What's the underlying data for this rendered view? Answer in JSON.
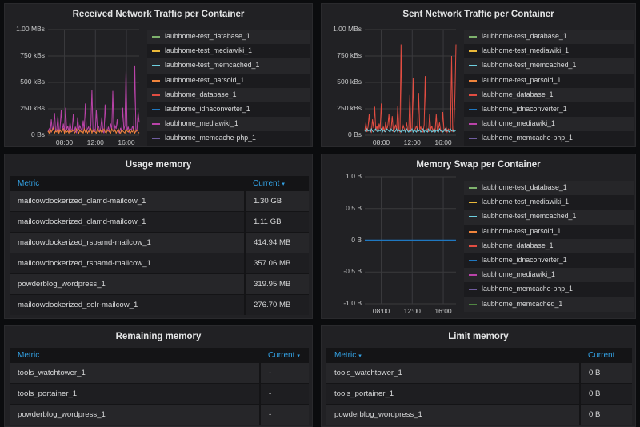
{
  "panels": {
    "received": {
      "title": "Received Network Traffic per Container",
      "y_ticks": [
        "1.00 MBs",
        "750 kBs",
        "500 kBs",
        "250 kBs",
        "0 Bs"
      ],
      "x_ticks": [
        "08:00",
        "12:00",
        "16:00"
      ],
      "legend": [
        {
          "name": "laubhome-test_database_1",
          "color": "#7eb26d"
        },
        {
          "name": "laubhome-test_mediawiki_1",
          "color": "#eab839"
        },
        {
          "name": "laubhome-test_memcached_1",
          "color": "#6ed0e0"
        },
        {
          "name": "laubhome-test_parsoid_1",
          "color": "#ef843c"
        },
        {
          "name": "laubhome_database_1",
          "color": "#e24d42"
        },
        {
          "name": "laubhome_idnaconverter_1",
          "color": "#1f78c1"
        },
        {
          "name": "laubhome_mediawiki_1",
          "color": "#ba43a9"
        },
        {
          "name": "laubhome_memcache-php_1",
          "color": "#705da0"
        }
      ]
    },
    "sent": {
      "title": "Sent Network Traffic per Container",
      "y_ticks": [
        "1.00 MBs",
        "750 kBs",
        "500 kBs",
        "250 kBs",
        "0 Bs"
      ],
      "x_ticks": [
        "08:00",
        "12:00",
        "16:00"
      ],
      "legend": [
        {
          "name": "laubhome-test_database_1",
          "color": "#7eb26d"
        },
        {
          "name": "laubhome-test_mediawiki_1",
          "color": "#eab839"
        },
        {
          "name": "laubhome-test_memcached_1",
          "color": "#6ed0e0"
        },
        {
          "name": "laubhome-test_parsoid_1",
          "color": "#ef843c"
        },
        {
          "name": "laubhome_database_1",
          "color": "#e24d42"
        },
        {
          "name": "laubhome_idnaconverter_1",
          "color": "#1f78c1"
        },
        {
          "name": "laubhome_mediawiki_1",
          "color": "#ba43a9"
        },
        {
          "name": "laubhome_memcache-php_1",
          "color": "#705da0"
        }
      ]
    },
    "swap": {
      "title": "Memory Swap per Container",
      "y_ticks": [
        "1.0 B",
        "0.5 B",
        "0 B",
        "-0.5 B",
        "-1.0 B"
      ],
      "x_ticks": [
        "08:00",
        "12:00",
        "16:00"
      ],
      "legend": [
        {
          "name": "laubhome-test_database_1",
          "color": "#7eb26d"
        },
        {
          "name": "laubhome-test_mediawiki_1",
          "color": "#eab839"
        },
        {
          "name": "laubhome-test_memcached_1",
          "color": "#6ed0e0"
        },
        {
          "name": "laubhome-test_parsoid_1",
          "color": "#ef843c"
        },
        {
          "name": "laubhome_database_1",
          "color": "#e24d42"
        },
        {
          "name": "laubhome_idnaconverter_1",
          "color": "#1f78c1"
        },
        {
          "name": "laubhome_mediawiki_1",
          "color": "#ba43a9"
        },
        {
          "name": "laubhome_memcache-php_1",
          "color": "#705da0"
        },
        {
          "name": "laubhome_memcached_1",
          "color": "#508642"
        }
      ]
    },
    "usage": {
      "title": "Usage memory",
      "col_metric": "Metric",
      "col_current": "Current",
      "sort_arrow": "▾",
      "rows": [
        {
          "metric": "mailcowdockerized_clamd-mailcow_1",
          "value": "1.30 GB"
        },
        {
          "metric": "mailcowdockerized_clamd-mailcow_1",
          "value": "1.11 GB"
        },
        {
          "metric": "mailcowdockerized_rspamd-mailcow_1",
          "value": "414.94 MB"
        },
        {
          "metric": "mailcowdockerized_rspamd-mailcow_1",
          "value": "357.06 MB"
        },
        {
          "metric": "powderblog_wordpress_1",
          "value": "319.95 MB"
        },
        {
          "metric": "mailcowdockerized_solr-mailcow_1",
          "value": "276.70 MB"
        }
      ]
    },
    "remaining": {
      "title": "Remaining memory",
      "col_metric": "Metric",
      "col_current": "Current",
      "sort_arrow": "▾",
      "rows": [
        {
          "metric": "tools_watchtower_1",
          "value": "-"
        },
        {
          "metric": "tools_portainer_1",
          "value": "-"
        },
        {
          "metric": "powderblog_wordpress_1",
          "value": "-"
        }
      ]
    },
    "limit": {
      "title": "Limit memory",
      "col_metric": "Metric",
      "col_current": "Current",
      "sort_arrow": "▾",
      "rows": [
        {
          "metric": "tools_watchtower_1",
          "value": "0 B"
        },
        {
          "metric": "tools_portainer_1",
          "value": "0 B"
        },
        {
          "metric": "powderblog_wordpress_1",
          "value": "0 B"
        }
      ]
    }
  },
  "chart_data": [
    {
      "type": "line",
      "title": "Received Network Traffic per Container",
      "ylabel": "",
      "xlabel": "",
      "ylim": [
        0,
        1000000
      ],
      "x_ticks": [
        "08:00",
        "12:00",
        "16:00"
      ],
      "series": [
        {
          "name": "laubhome_mediawiki_1",
          "color": "#ba43a9",
          "values": [
            30000,
            60000,
            20000,
            150000,
            40000,
            90000,
            210000,
            30000,
            60000,
            180000,
            20000,
            70000,
            240000,
            40000,
            110000,
            30000,
            260000,
            50000,
            90000,
            30000,
            120000,
            60000,
            40000,
            200000,
            30000,
            80000,
            20000,
            170000,
            50000,
            90000,
            60000,
            30000,
            140000,
            40000,
            300000,
            30000,
            60000,
            80000,
            20000,
            100000,
            430000,
            30000,
            60000,
            40000,
            240000,
            50000,
            90000,
            30000,
            70000,
            170000,
            40000,
            20000,
            290000,
            60000,
            40000,
            80000,
            30000,
            110000,
            50000,
            420000,
            30000,
            90000,
            60000,
            150000,
            40000,
            20000,
            70000,
            30000,
            260000,
            50000,
            90000,
            610000,
            40000,
            80000,
            30000,
            60000,
            50000,
            90000,
            40000,
            660000,
            30000,
            60000,
            220000,
            120000
          ]
        },
        {
          "name": "laubhome-test_parsoid_1",
          "color": "#ef843c",
          "values": [
            40000,
            20000,
            60000,
            30000,
            50000,
            70000,
            20000,
            40000,
            30000,
            60000,
            20000,
            50000,
            30000,
            40000,
            60000,
            20000,
            50000,
            30000,
            40000,
            20000,
            60000,
            30000,
            40000,
            50000,
            20000,
            30000,
            60000,
            40000,
            20000,
            50000,
            30000,
            40000,
            20000,
            60000,
            30000,
            50000,
            20000,
            40000,
            30000,
            60000,
            20000,
            50000,
            40000,
            30000,
            20000,
            60000,
            40000,
            30000,
            50000,
            20000,
            40000,
            60000,
            30000,
            20000,
            50000,
            40000,
            30000,
            20000,
            60000,
            40000,
            30000,
            50000,
            20000,
            40000,
            60000,
            30000,
            20000,
            50000,
            40000,
            30000,
            20000,
            60000,
            40000,
            30000,
            50000,
            20000,
            40000,
            30000,
            60000,
            20000,
            40000,
            50000,
            30000,
            20000
          ]
        }
      ]
    },
    {
      "type": "line",
      "title": "Sent Network Traffic per Container",
      "ylabel": "",
      "xlabel": "",
      "ylim": [
        0,
        1000000
      ],
      "x_ticks": [
        "08:00",
        "12:00",
        "16:00"
      ],
      "series": [
        {
          "name": "laubhome_database_1",
          "color": "#e24d42",
          "values": [
            40000,
            120000,
            30000,
            80000,
            200000,
            50000,
            30000,
            150000,
            70000,
            270000,
            40000,
            90000,
            30000,
            110000,
            60000,
            300000,
            40000,
            80000,
            30000,
            130000,
            50000,
            90000,
            200000,
            40000,
            70000,
            180000,
            30000,
            60000,
            100000,
            40000,
            280000,
            50000,
            30000,
            860000,
            40000,
            90000,
            60000,
            30000,
            120000,
            50000,
            40000,
            380000,
            30000,
            70000,
            540000,
            40000,
            60000,
            90000,
            30000,
            400000,
            50000,
            80000,
            40000,
            30000,
            100000,
            560000,
            40000,
            60000,
            30000,
            200000,
            50000,
            90000,
            30000,
            70000,
            40000,
            200000,
            30000,
            60000,
            120000,
            40000,
            30000,
            220000,
            60000,
            40000,
            80000,
            30000,
            60000,
            50000,
            40000,
            750000,
            30000,
            60000,
            350000,
            860000
          ]
        },
        {
          "name": "laubhome-test_memcached_1",
          "color": "#6ed0e0",
          "values": [
            50000,
            30000,
            60000,
            40000,
            50000,
            30000,
            60000,
            40000,
            30000,
            50000,
            60000,
            40000,
            30000,
            50000,
            40000,
            60000,
            30000,
            50000,
            40000,
            30000,
            60000,
            50000,
            40000,
            30000,
            60000,
            40000,
            50000,
            30000,
            40000,
            60000,
            30000,
            50000,
            40000,
            30000,
            60000,
            40000,
            50000,
            30000,
            60000,
            40000,
            30000,
            50000,
            40000,
            60000,
            30000,
            50000,
            40000,
            30000,
            60000,
            40000,
            50000,
            30000,
            40000,
            60000,
            30000,
            50000,
            40000,
            30000,
            60000,
            40000,
            50000,
            30000,
            40000,
            60000,
            30000,
            50000,
            40000,
            30000,
            60000,
            40000,
            50000,
            30000,
            40000,
            60000,
            30000,
            50000,
            40000,
            30000,
            60000,
            40000,
            50000,
            30000,
            40000,
            50000
          ]
        }
      ]
    },
    {
      "type": "line",
      "title": "Memory Swap per Container",
      "ylabel": "",
      "xlabel": "",
      "ylim": [
        -1.0,
        1.0
      ],
      "x_ticks": [
        "08:00",
        "12:00",
        "16:00"
      ],
      "series": [
        {
          "name": "laubhome_idnaconverter_1",
          "color": "#1f78c1",
          "values": [
            0,
            0
          ]
        }
      ]
    }
  ]
}
